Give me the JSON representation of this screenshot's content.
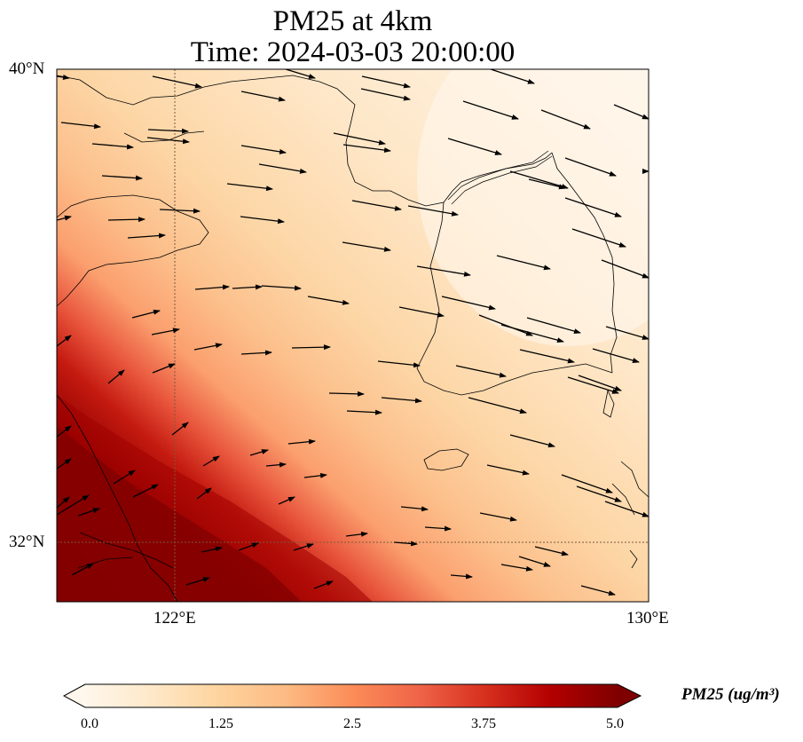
{
  "title": {
    "line1": "PM25 at 4km",
    "line2": "Time: 2024-03-03 20:00:00"
  },
  "axes": {
    "lat_labels": [
      "40°N",
      "32°N"
    ],
    "lon_labels": [
      "122°E",
      "130°E"
    ]
  },
  "colorbar": {
    "label": "PM25 (ug/m³)",
    "ticks": [
      "0.0",
      "1.25",
      "2.5",
      "3.75",
      "5.0"
    ],
    "colormap": "OrRd",
    "colors": [
      "#fff7ec",
      "#fee8c8",
      "#fdd49e",
      "#fdbb84",
      "#fc8d59",
      "#ef6548",
      "#d7301f",
      "#b30000",
      "#7f0000"
    ]
  },
  "map": {
    "extent": {
      "lon_min": 120,
      "lon_max": 130,
      "lat_min": 31,
      "lat_max": 40
    },
    "gridlines": {
      "lon": [
        122
      ],
      "lat": [
        32
      ]
    },
    "wind_arrows": "quiver field, predominantly westerly flow turning southwesterly in the southwest"
  }
}
